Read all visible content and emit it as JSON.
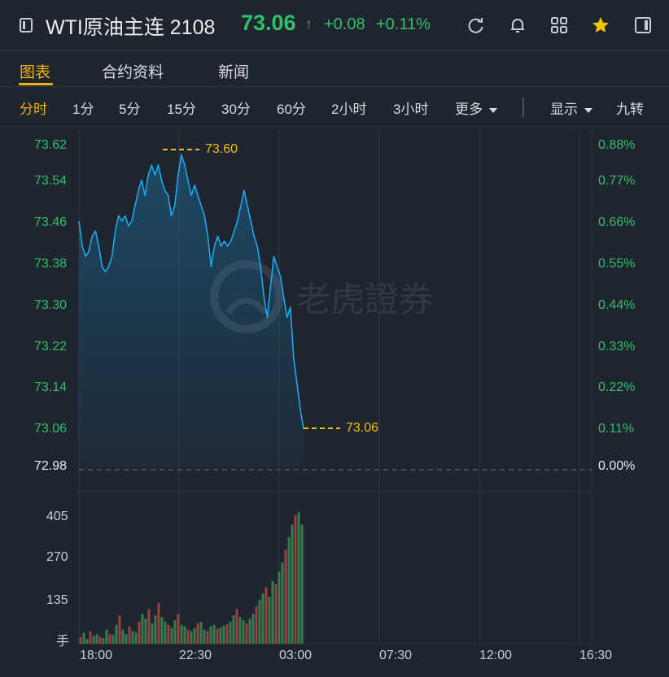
{
  "header": {
    "title": "WTI原油主连 2108",
    "price": "73.06",
    "arrow": "↑",
    "change": "+0.08",
    "change_pct": "+0.11%"
  },
  "tabs": [
    {
      "label": "图表",
      "active": true
    },
    {
      "label": "合约资料",
      "active": false
    },
    {
      "label": "新闻",
      "active": false
    }
  ],
  "periods": [
    {
      "label": "分时",
      "active": true
    },
    {
      "label": "1分"
    },
    {
      "label": "5分"
    },
    {
      "label": "15分"
    },
    {
      "label": "30分"
    },
    {
      "label": "60分"
    },
    {
      "label": "2小时"
    },
    {
      "label": "3小时"
    },
    {
      "label": "更多"
    },
    {
      "label": "显示"
    },
    {
      "label": "九转"
    }
  ],
  "watermark": "老虎證券",
  "colors": {
    "up": "#31c06a",
    "line": "#1aa8f0",
    "accent": "#f2b400",
    "background": "#1f252f"
  },
  "chart_data": {
    "type": "line",
    "price_axis": [
      "73.62",
      "73.54",
      "73.46",
      "73.38",
      "73.30",
      "73.22",
      "73.14",
      "73.06",
      "72.98"
    ],
    "pct_axis": [
      "0.88%",
      "0.77%",
      "0.66%",
      "0.55%",
      "0.44%",
      "0.33%",
      "0.22%",
      "0.11%",
      "0.00%"
    ],
    "base_price": 72.98,
    "ylim": [
      72.98,
      73.62
    ],
    "high_label": "73.60",
    "last_label": "73.06",
    "volume_axis": [
      "405",
      "270",
      "135"
    ],
    "volume_unit": "手",
    "x_ticks": [
      "18:00",
      "22:30",
      "03:00",
      "07:30",
      "12:00",
      "16:30"
    ],
    "series": [
      {
        "values": [
          73.47,
          73.42,
          73.4,
          73.41,
          73.44,
          73.45,
          73.42,
          73.38,
          73.37,
          73.38,
          73.4,
          73.45,
          73.48,
          73.47,
          73.48,
          73.46,
          73.47,
          73.5,
          73.53,
          73.55,
          73.52,
          73.56,
          73.58,
          73.56,
          73.58,
          73.55,
          73.53,
          73.52,
          73.48,
          73.5,
          73.56,
          73.6,
          73.58,
          73.55,
          73.52,
          73.54,
          73.52,
          73.5,
          73.48,
          73.44,
          73.38,
          73.42,
          73.44,
          73.42,
          73.43,
          73.42,
          73.43,
          73.45,
          73.47,
          73.5,
          73.53,
          73.5,
          73.47,
          73.44,
          73.42,
          73.38,
          73.32,
          73.28,
          73.34,
          73.4,
          73.38,
          73.36,
          73.32,
          73.28,
          73.3,
          73.2,
          73.15,
          73.1,
          73.06
        ]
      }
    ],
    "volume": [
      20,
      35,
      15,
      40,
      25,
      30,
      22,
      18,
      45,
      30,
      28,
      60,
      90,
      45,
      30,
      55,
      40,
      35,
      70,
      95,
      80,
      110,
      65,
      90,
      130,
      85,
      70,
      60,
      50,
      75,
      95,
      60,
      55,
      45,
      40,
      50,
      65,
      70,
      45,
      40,
      55,
      60,
      48,
      52,
      58,
      62,
      70,
      90,
      110,
      85,
      75,
      65,
      80,
      95,
      120,
      140,
      160,
      180,
      150,
      200,
      190,
      230,
      260,
      300,
      340,
      380,
      410,
      420,
      380
    ]
  }
}
